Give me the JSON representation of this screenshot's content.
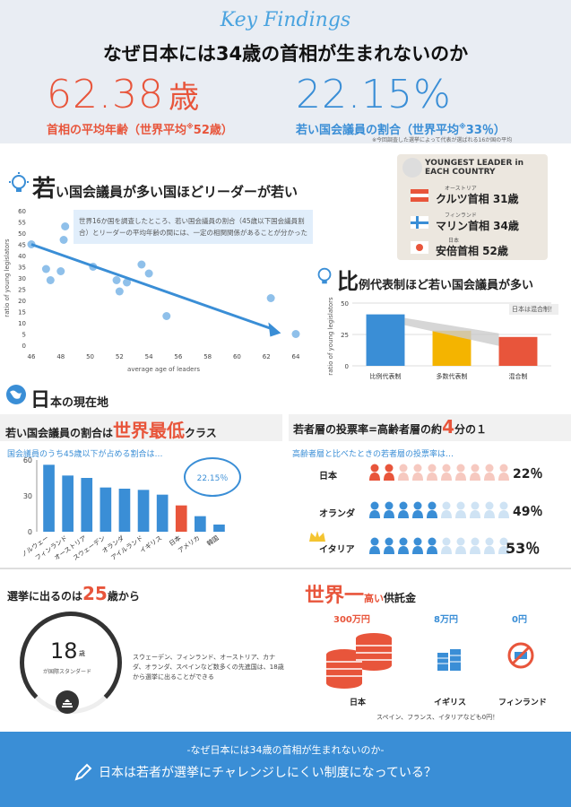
{
  "header": {
    "kicker": "Key Findings",
    "title": "なぜ日本には34歳の首相が生まれないのか",
    "stat1_value": "62.38",
    "stat1_unit": "歳",
    "stat1_label": "首相の平均年齢（世界平均",
    "stat1_note": "※",
    "stat1_world": "52歳）",
    "stat2_value": "22.15%",
    "stat2_label": "若い国会議員の割合（世界平均",
    "stat2_world": "33％）",
    "stat2_footnote": "※今回調査した選挙によって代表が選ばれる16か国の平均"
  },
  "sec1": {
    "title_big": "若",
    "title_rest": "い国会議員が多い国ほどリーダーが若い",
    "note": "世界16か国を調査したところ、若い国会議員の割合（45歳以下国会議員割合）とリーダーの平均年齢の間には、一定の相関関係があることが分かった",
    "ylabel": "ratio of young legislators",
    "xlabel": "average age of leaders"
  },
  "leaders": {
    "title": "YOUNGEST LEADER in EACH COUNTRY",
    "rows": [
      {
        "country": "オーストリア",
        "text": "クルツ首相 31歳"
      },
      {
        "country": "フィンランド",
        "text": "マリン首相 34歳"
      },
      {
        "country": "日本",
        "text": "安倍首相 52歳"
      }
    ]
  },
  "sec2": {
    "title_big": "比",
    "title_rest": "例代表制ほど若い国会議員が多い",
    "ylabel": "ratio of young legislators",
    "callout": "日本は混合制！"
  },
  "sec3": {
    "title_big": "日",
    "title_rest": "本の現在地"
  },
  "sec4": {
    "title_a": "若い国会議員の割合は",
    "title_b": "世界最低",
    "title_c": "クラス",
    "sub": "国会議員のうち45歳以下が占める割合は…",
    "bubble": "22.15％"
  },
  "sec5": {
    "title_a": "若者層の投票率=高齢者層の約",
    "title_b": "4",
    "title_c": "分の１",
    "sub": "高齢者層と比べたときの若者層の投票率は…",
    "rows": [
      {
        "country": "日本",
        "pct": "22％"
      },
      {
        "country": "オランダ",
        "pct": "49％"
      },
      {
        "country": "イタリア",
        "pct": "53％"
      }
    ]
  },
  "sec6": {
    "title_a": "選挙に出るのは",
    "title_b": "25",
    "title_c": "歳から",
    "circle_num": "18",
    "circle_unit": "歳",
    "circle_label": "が国際スタンダード",
    "text": "スウェーデン、フィンランド、オーストリア、カナダ、オランダ、スペインなど数多くの先進国は、18歳から選挙に出ることができる"
  },
  "sec7": {
    "title_a": "世界一",
    "title_b": "高い",
    "title_c": "供託金",
    "items": [
      {
        "amount": "300万円",
        "country": "日本"
      },
      {
        "amount": "8万円",
        "country": "イギリス"
      },
      {
        "amount": "0円",
        "country": "フィンランド"
      }
    ],
    "note": "スペイン、フランス、イタリアなども0円！"
  },
  "footer": {
    "sub": "-なぜ日本には34歳の首相が生まれないのか-",
    "main": "日本は若者が選挙にチャレンジしにくい制度になっている？"
  },
  "colors": {
    "accent_blue": "#3a8ed6",
    "accent_red": "#e8553b"
  },
  "chart_data": [
    {
      "type": "scatter",
      "xlabel": "average age of leaders",
      "ylabel": "ratio of young legislators",
      "xlim": [
        46,
        64
      ],
      "ylim": [
        0,
        60
      ],
      "xticks": [
        46,
        48,
        50,
        52,
        54,
        56,
        58,
        60,
        62,
        64
      ],
      "yticks": [
        0,
        5,
        10,
        15,
        20,
        25,
        30,
        35,
        40,
        45,
        50,
        55,
        60
      ],
      "points": [
        [
          46,
          45
        ],
        [
          47,
          34
        ],
        [
          47.3,
          29
        ],
        [
          48,
          33
        ],
        [
          48.2,
          47
        ],
        [
          48.3,
          53
        ],
        [
          50.2,
          35
        ],
        [
          51.8,
          29
        ],
        [
          52,
          24
        ],
        [
          52.5,
          28
        ],
        [
          53.5,
          36
        ],
        [
          54,
          32
        ],
        [
          55.2,
          13
        ],
        [
          62.3,
          21
        ],
        [
          64,
          5
        ]
      ],
      "trend": [
        [
          46,
          45
        ],
        [
          62.5,
          7
        ]
      ]
    },
    {
      "type": "bar",
      "categories": [
        "比例代表制",
        "多数代表制",
        "混合制"
      ],
      "values": [
        41,
        28,
        23
      ],
      "ylim": [
        0,
        50
      ],
      "yticks": [
        0,
        25,
        50
      ]
    },
    {
      "type": "bar",
      "categories": [
        "ノルウェー",
        "フィンランド",
        "オーストリア",
        "スウェーデン",
        "オランダ",
        "アイルランド",
        "イギリス",
        "日本",
        "アメリカ",
        "韓国"
      ],
      "values": [
        56,
        47,
        45,
        37,
        36,
        35,
        31,
        22,
        13,
        6
      ],
      "ylim": [
        0,
        60
      ],
      "yticks": [
        0,
        30,
        60
      ]
    }
  ]
}
